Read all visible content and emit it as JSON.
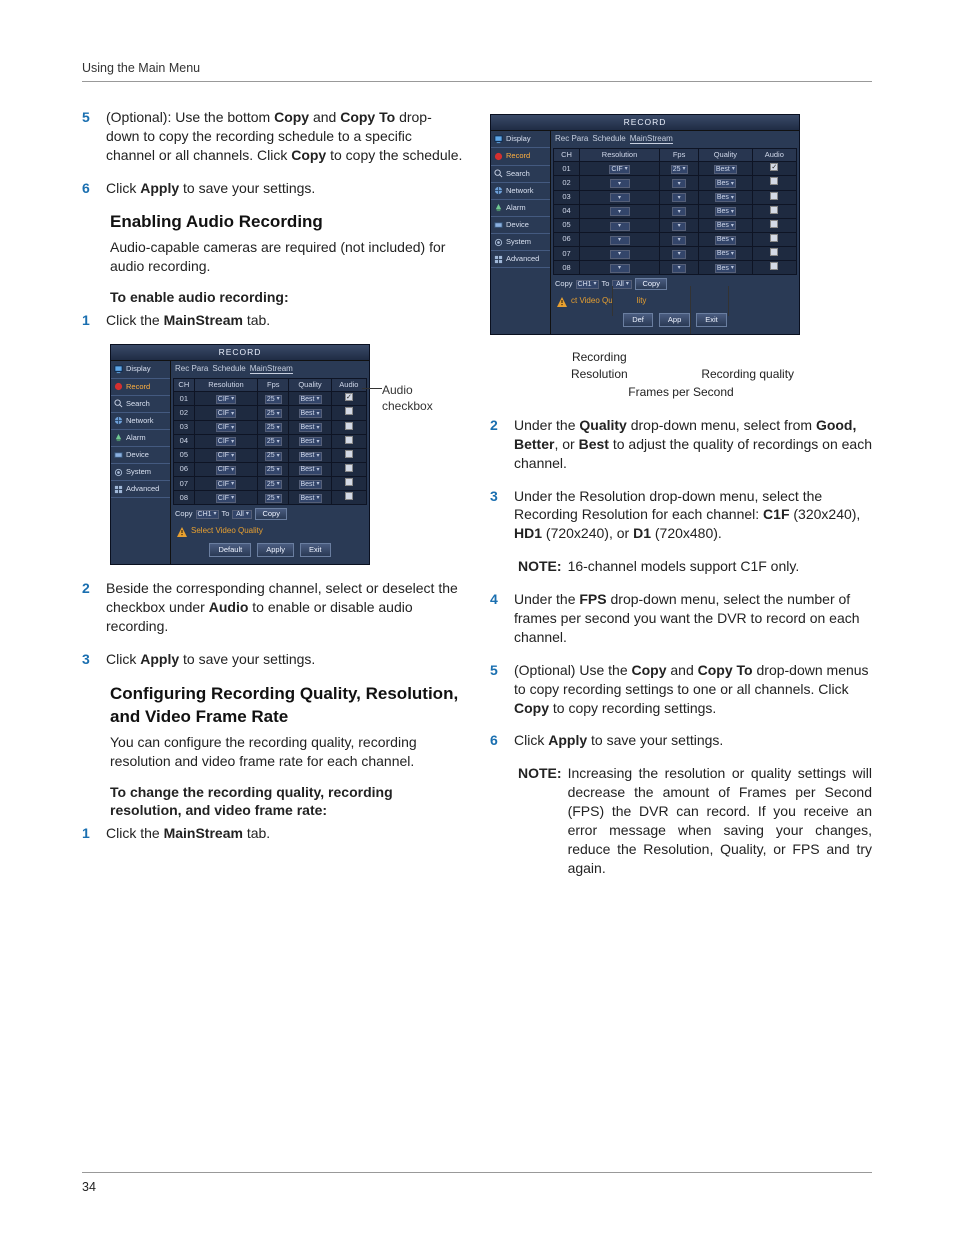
{
  "header": {
    "page_header": "Using the Main Menu"
  },
  "page_number": "34",
  "colors": {
    "accent": "#1a6fb0",
    "ui_bg": "#2a3a55",
    "ui_title_grad_top": "#3a4a68",
    "ui_title_grad_bot": "#1f2c44",
    "ui_cell_bg": "#1e2a40",
    "ui_border": "#0e1424",
    "ui_text": "#d8e0f0",
    "warn": "#e8a030"
  },
  "left": {
    "step5": "(Optional): Use the bottom <b>Copy</b> and <b>Copy To</b> drop-down to copy the recording schedule to a specific channel or all channels. Click <b>Copy</b> to copy the schedule.",
    "step6": "Click <b>Apply</b> to save your settings.",
    "h_audio": "Enabling Audio Recording",
    "audio_intro": "Audio-capable cameras are required (not included) for audio recording.",
    "h_audio_sub": "To enable audio recording:",
    "audio_step1": "Click the <b>MainStream</b> tab.",
    "callout_audio": "Audio checkbox",
    "audio_step2": "Beside the corresponding channel, select or deselect the checkbox under <b>Audio</b> to enable or disable audio recording.",
    "audio_step3": "Click <b>Apply</b> to save your settings.",
    "h_quality": "Configuring Recording Quality, Resolution, and Video Frame Rate",
    "quality_intro": "You can configure the recording quality, recording resolution and video frame rate for each channel.",
    "h_quality_sub": "To change the recording quality, recording resolution, and video frame rate:",
    "quality_step1": "Click the <b>MainStream</b> tab."
  },
  "right": {
    "annot_rec_res": "Recording Resolution",
    "annot_rec_qual": "Recording quality",
    "annot_fps": "Frames per Second",
    "step2": "Under the <b>Quality</b> drop-down menu, select from <b>Good, Better</b>, or <b>Best</b> to adjust the quality of recordings on each channel.",
    "step3": "Under the Resolution drop-down menu, select the Recording Resolution for each channel: <b>C1F</b> (320x240), <b>HD1</b> (720x240), or <b>D1</b> (720x480).",
    "note1": "16-channel models support C1F only.",
    "step4": "Under the <b>FPS</b> drop-down menu, select the number of frames per second you want the DVR to record on each channel.",
    "step5": "(Optional) Use the <b>Copy</b> and <b>Copy To</b> drop-down menus to copy recording settings to one or all channels. Click <b>Copy</b> to copy recording settings.",
    "step6": "Click <b>Apply</b> to save your settings.",
    "note2": "Increasing the resolution or quality settings will decrease the amount of Frames per Second (FPS) the DVR can record. If you receive an error message when saving your changes, reduce the Resolution, Quality, or FPS and try again."
  },
  "record_ui": {
    "title": "RECORD",
    "sidebar": [
      {
        "label": "Display",
        "icon": "display"
      },
      {
        "label": "Record",
        "icon": "record",
        "active": true
      },
      {
        "label": "Search",
        "icon": "search"
      },
      {
        "label": "Network",
        "icon": "network"
      },
      {
        "label": "Alarm",
        "icon": "alarm"
      },
      {
        "label": "Device",
        "icon": "device"
      },
      {
        "label": "System",
        "icon": "system"
      },
      {
        "label": "Advanced",
        "icon": "advanced"
      }
    ],
    "tabs": [
      "Rec Para",
      "Schedule",
      "MainStream"
    ],
    "active_tab_index": 2,
    "headers": [
      "CH",
      "Resolution",
      "Fps",
      "Quality",
      "Audio"
    ],
    "rows_left": [
      {
        "ch": "01",
        "res": "CIF",
        "fps": "25",
        "qual": "Best",
        "audio": true
      },
      {
        "ch": "02",
        "res": "CIF",
        "fps": "25",
        "qual": "Best",
        "audio": false
      },
      {
        "ch": "03",
        "res": "CIF",
        "fps": "25",
        "qual": "Best",
        "audio": false
      },
      {
        "ch": "04",
        "res": "CIF",
        "fps": "25",
        "qual": "Best",
        "audio": false
      },
      {
        "ch": "05",
        "res": "CIF",
        "fps": "25",
        "qual": "Best",
        "audio": false
      },
      {
        "ch": "06",
        "res": "CIF",
        "fps": "25",
        "qual": "Best",
        "audio": false
      },
      {
        "ch": "07",
        "res": "CIF",
        "fps": "25",
        "qual": "Best",
        "audio": false
      },
      {
        "ch": "08",
        "res": "CIF",
        "fps": "25",
        "qual": "Best",
        "audio": false
      }
    ],
    "rows_right": [
      {
        "ch": "01",
        "res_blank": false,
        "res": "CIF",
        "fps": "25",
        "qual": "Best",
        "audio": true
      },
      {
        "ch": "02",
        "res_blank": true,
        "res": "",
        "fps": "",
        "qual": "Bes",
        "audio": false
      },
      {
        "ch": "03",
        "res_blank": true,
        "res": "",
        "fps": "",
        "qual": "Bes",
        "audio": false
      },
      {
        "ch": "04",
        "res_blank": true,
        "res": "",
        "fps": "",
        "qual": "Bes",
        "audio": false
      },
      {
        "ch": "05",
        "res_blank": true,
        "res": "",
        "fps": "",
        "qual": "Bes",
        "audio": false
      },
      {
        "ch": "06",
        "res_blank": true,
        "res": "",
        "fps": "",
        "qual": "Bes",
        "audio": false
      },
      {
        "ch": "07",
        "res_blank": true,
        "res": "",
        "fps": "",
        "qual": "Bes",
        "audio": false
      },
      {
        "ch": "08",
        "res_blank": true,
        "res": "",
        "fps": "",
        "qual": "Bes",
        "audio": false
      }
    ],
    "copy_label": "Copy",
    "copy_ch": "CH1",
    "copy_to_label": "To",
    "copy_to_val": "All",
    "copy_btn": "Copy",
    "warn_text": "Select Video Quality",
    "warn_text_right": "Select Video Quality",
    "buttons": [
      "Default",
      "Apply",
      "Exit"
    ],
    "buttons_right": [
      "Def",
      "App",
      "Exit"
    ]
  }
}
